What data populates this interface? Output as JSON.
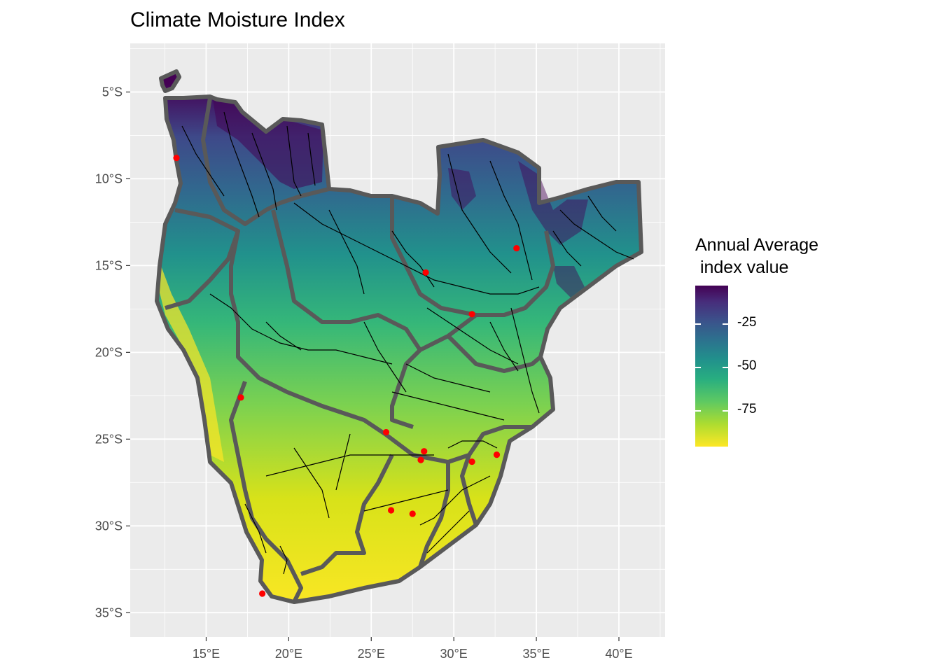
{
  "title": "Climate Moisture Index",
  "map": {
    "lon_range": [
      10.4,
      42.8
    ],
    "lat_range": [
      -36.4,
      -2.2
    ],
    "x_ticks": [
      {
        "value": 15,
        "label": "15°E"
      },
      {
        "value": 20,
        "label": "20°E"
      },
      {
        "value": 25,
        "label": "25°E"
      },
      {
        "value": 30,
        "label": "30°E"
      },
      {
        "value": 35,
        "label": "35°E"
      },
      {
        "value": 40,
        "label": "40°E"
      }
    ],
    "y_ticks": [
      {
        "value": -5,
        "label": "5°S"
      },
      {
        "value": -10,
        "label": "10°S"
      },
      {
        "value": -15,
        "label": "15°S"
      },
      {
        "value": -20,
        "label": "20°S"
      },
      {
        "value": -25,
        "label": "25°S"
      },
      {
        "value": -30,
        "label": "30°S"
      },
      {
        "value": -35,
        "label": "35°S"
      }
    ],
    "panel_background": "#ebebeb",
    "grid_color": "#ffffff",
    "boundary_color": "#595959",
    "river_color": "#000000",
    "station_color": "#ff0000",
    "stations": [
      {
        "lon": 13.2,
        "lat": -8.8
      },
      {
        "lon": 17.1,
        "lat": -22.6
      },
      {
        "lon": 33.8,
        "lat": -14.0
      },
      {
        "lon": 28.3,
        "lat": -15.4
      },
      {
        "lon": 31.1,
        "lat": -17.8
      },
      {
        "lon": 25.9,
        "lat": -24.6
      },
      {
        "lon": 28.2,
        "lat": -25.7
      },
      {
        "lon": 28.0,
        "lat": -26.2
      },
      {
        "lon": 31.1,
        "lat": -26.3
      },
      {
        "lon": 32.6,
        "lat": -25.9
      },
      {
        "lon": 26.2,
        "lat": -29.1
      },
      {
        "lon": 27.5,
        "lat": -29.3
      },
      {
        "lon": 18.4,
        "lat": -33.9
      }
    ]
  },
  "legend": {
    "title": "Annual Average\n index value",
    "range": [
      -96,
      -3
    ],
    "ticks": [
      {
        "value": -25,
        "label": "-25"
      },
      {
        "value": -50,
        "label": "-50"
      },
      {
        "value": -75,
        "label": "-75"
      }
    ],
    "colors": [
      "#440154",
      "#472d7b",
      "#3b528b",
      "#2c728e",
      "#21918c",
      "#28ae80",
      "#5ec962",
      "#addc30",
      "#fde725"
    ]
  }
}
